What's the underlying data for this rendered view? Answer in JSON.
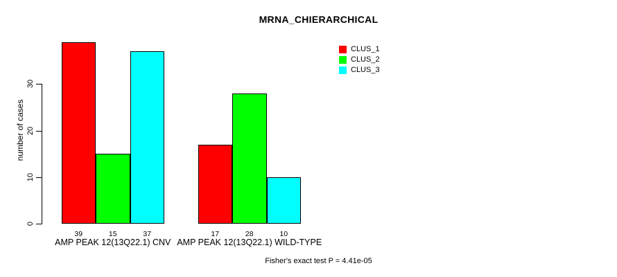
{
  "chart_data": {
    "type": "bar",
    "title": "MRNA_CHIERARCHICAL",
    "ylabel": "number of cases",
    "xlabel": "",
    "yticks": [
      0,
      10,
      20,
      30
    ],
    "ylim": [
      0,
      40
    ],
    "grid": false,
    "legend_position": "top-right",
    "categories": [
      "AMP PEAK 12(13Q22.1) CNV",
      "AMP PEAK 12(13Q22.1) WILD-TYPE"
    ],
    "series": [
      {
        "name": "CLUS_1",
        "color": "#ff0000",
        "values": [
          39,
          17
        ]
      },
      {
        "name": "CLUS_2",
        "color": "#00ff00",
        "values": [
          15,
          28
        ]
      },
      {
        "name": "CLUS_3",
        "color": "#00ffff",
        "values": [
          37,
          10
        ]
      }
    ],
    "bar_value_labels_shown": true,
    "annotation": "Fisher's exact test P = 4.41e-05",
    "colors": {
      "foreground": "#000000",
      "background": "#ffffff"
    }
  }
}
